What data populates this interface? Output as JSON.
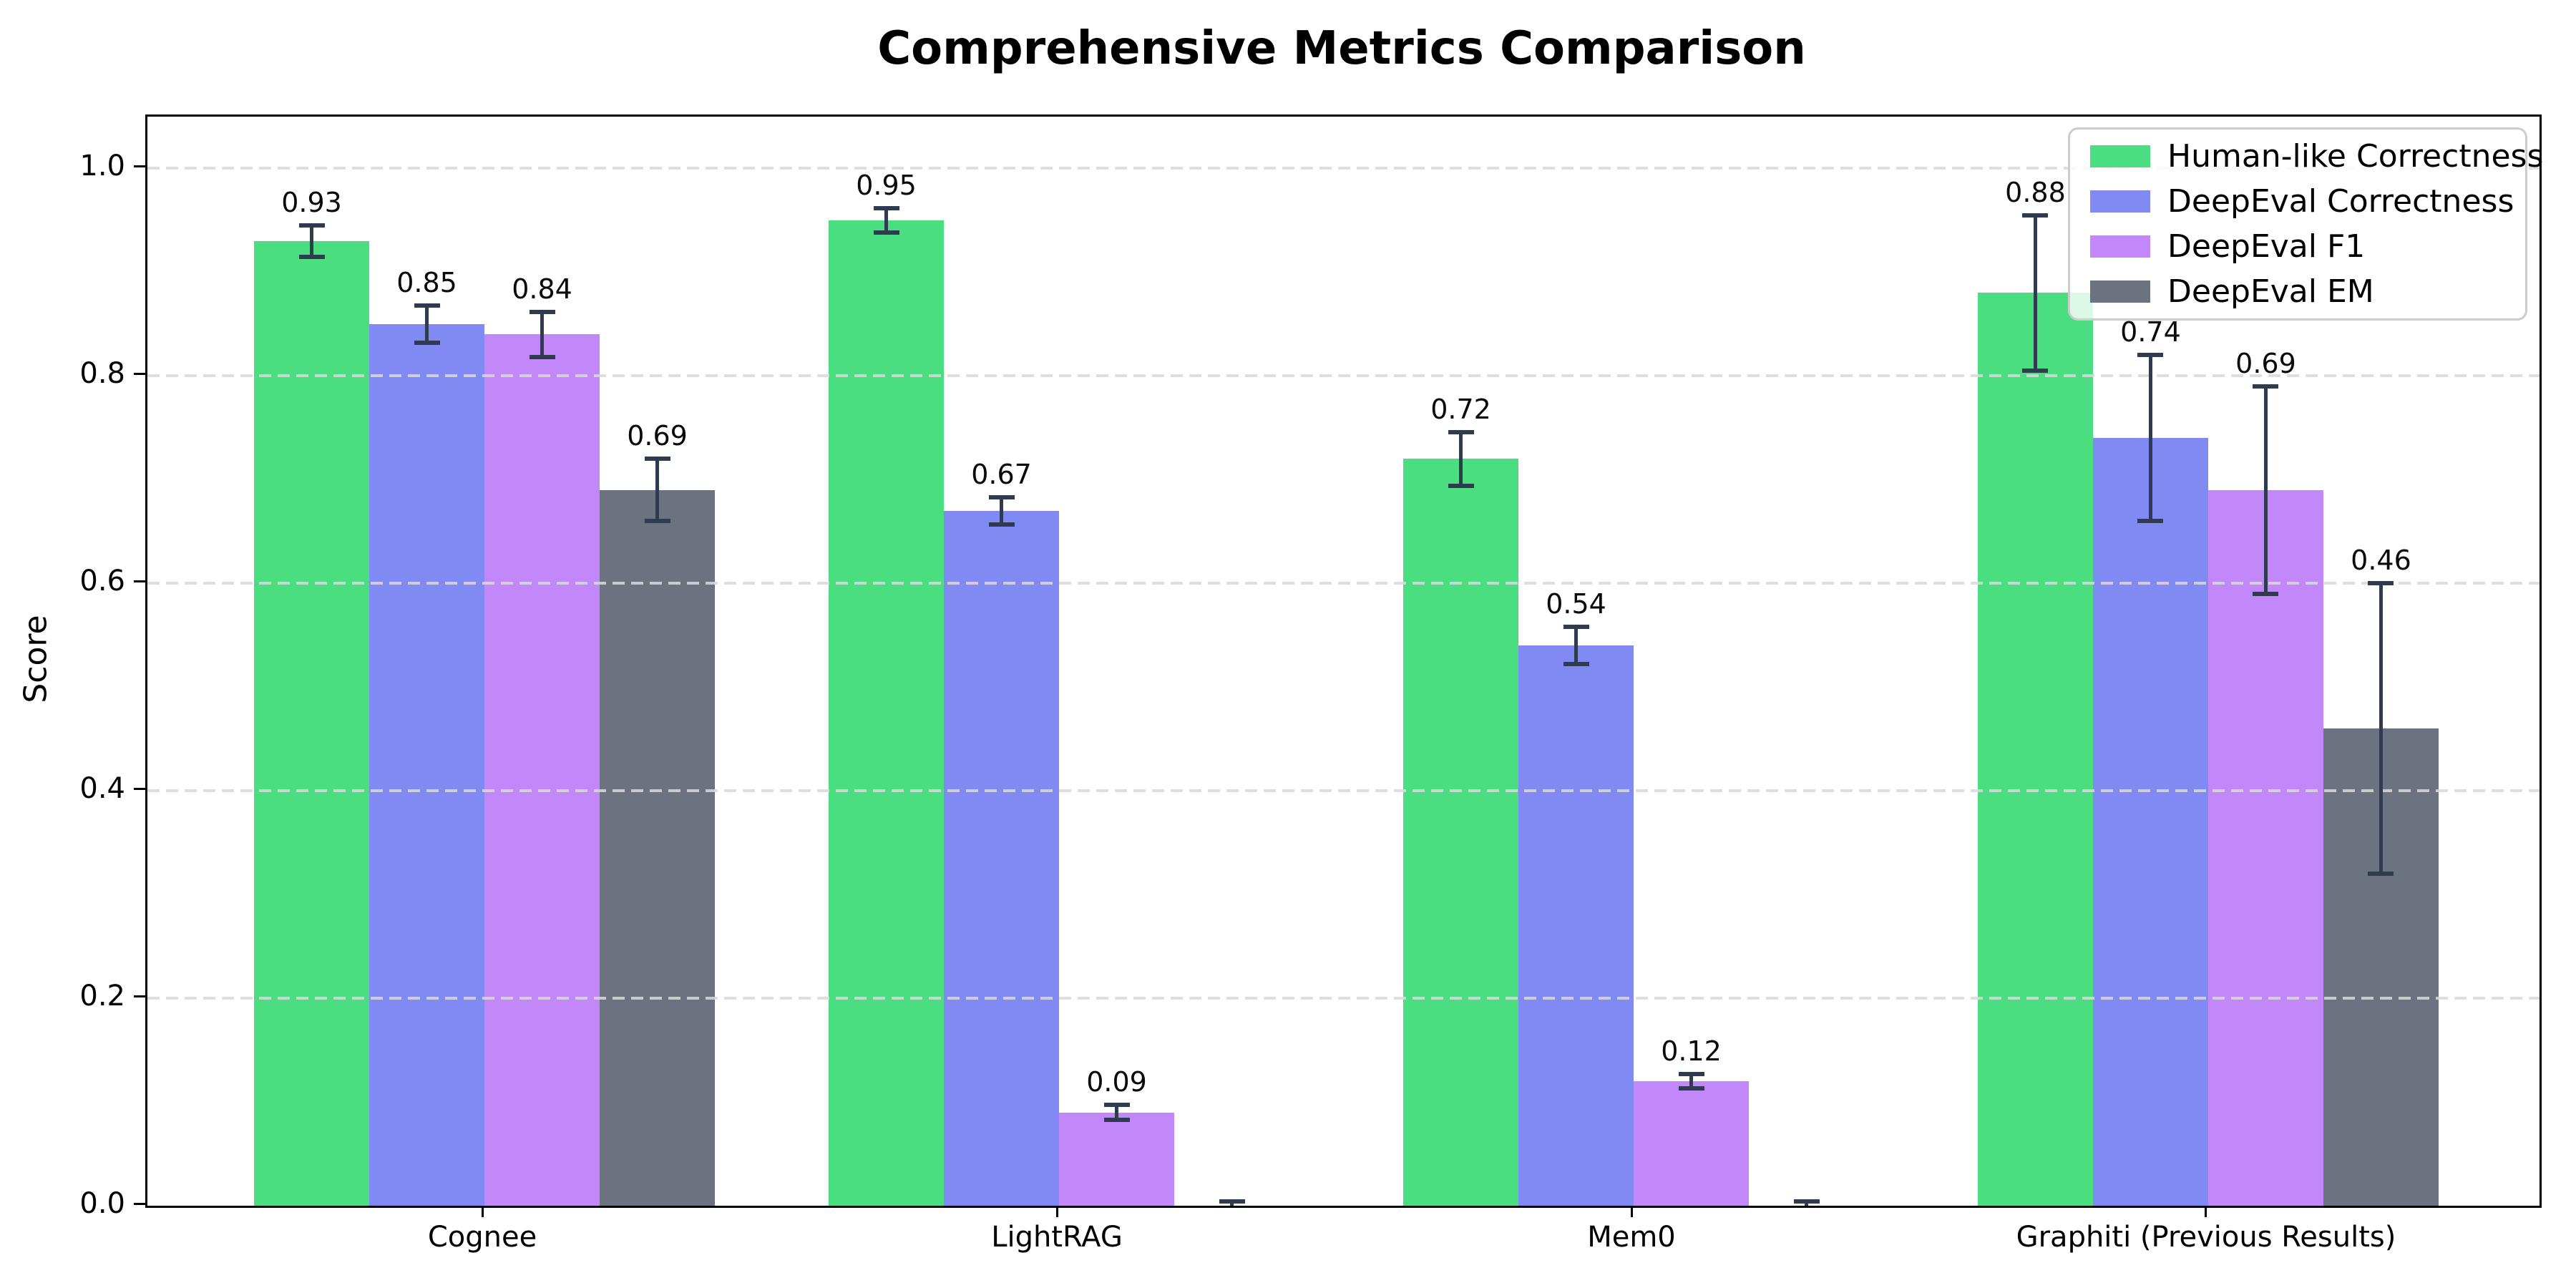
{
  "chart_data": {
    "type": "bar",
    "title": "Comprehensive Metrics Comparison",
    "xlabel": "",
    "ylabel": "Score",
    "ylim": [
      0,
      1.05
    ],
    "yticks": [
      0.0,
      0.2,
      0.4,
      0.6,
      0.8,
      1.0
    ],
    "ytick_labels": [
      "0.0",
      "0.2",
      "0.4",
      "0.6",
      "0.8",
      "1.0"
    ],
    "grid": "horizontal dashed",
    "legend_position": "upper right",
    "categories": [
      "Cognee",
      "LightRAG",
      "Mem0",
      "Graphiti (Previous Results)"
    ],
    "series": [
      {
        "name": "Human-like Correctness",
        "color": "#4ade80",
        "values": [
          0.93,
          0.95,
          0.72,
          0.88
        ],
        "errors": [
          0.015,
          0.012,
          0.026,
          0.075
        ],
        "labels": [
          "0.93",
          "0.95",
          "0.72",
          "0.88"
        ]
      },
      {
        "name": "DeepEval Correctness",
        "color": "#8189f3",
        "values": [
          0.85,
          0.67,
          0.54,
          0.74
        ],
        "errors": [
          0.018,
          0.013,
          0.018,
          0.08
        ],
        "labels": [
          "0.85",
          "0.67",
          "0.54",
          "0.74"
        ]
      },
      {
        "name": "DeepEval F1",
        "color": "#c287f9",
        "values": [
          0.84,
          0.09,
          0.12,
          0.69
        ],
        "errors": [
          0.022,
          0.007,
          0.007,
          0.1
        ],
        "labels": [
          "0.84",
          "0.09",
          "0.12",
          "0.69"
        ]
      },
      {
        "name": "DeepEval EM",
        "color": "#6b7280",
        "values": [
          0.69,
          0.0,
          0.0,
          0.46
        ],
        "errors": [
          0.03,
          0.004,
          0.004,
          0.14
        ],
        "labels": [
          "0.69",
          null,
          null,
          "0.46"
        ]
      }
    ],
    "error_bar_color": "#2f3b4e",
    "grid_color": "#d9d9d9",
    "axis_color": "#000000",
    "text_color": "#000000",
    "background_color": "#ffffff"
  }
}
